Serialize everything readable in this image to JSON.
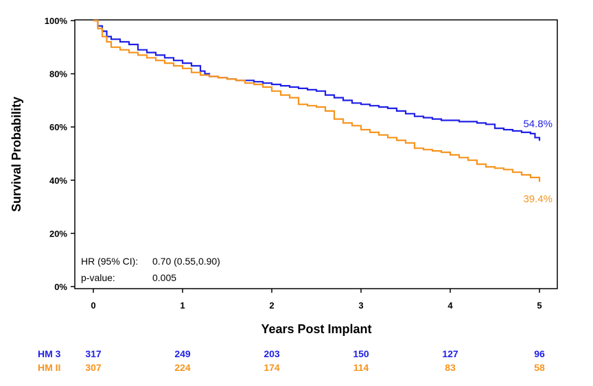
{
  "chart_data": {
    "type": "line",
    "xlabel": "Years Post Implant",
    "ylabel": "Survival Probability",
    "xlim": [
      0,
      5
    ],
    "ylim": [
      0,
      100
    ],
    "x_ticks": [
      "0",
      "1",
      "2",
      "3",
      "4",
      "5"
    ],
    "y_ticks": [
      "0%",
      "20%",
      "40%",
      "60%",
      "80%",
      "100%"
    ],
    "grid": false,
    "series": [
      {
        "name": "HM 3",
        "color": "#1f1fe6",
        "end_label": "54.8%",
        "points": [
          [
            0,
            100
          ],
          [
            0.05,
            98
          ],
          [
            0.1,
            96
          ],
          [
            0.15,
            94
          ],
          [
            0.2,
            93
          ],
          [
            0.3,
            92
          ],
          [
            0.4,
            91
          ],
          [
            0.5,
            89
          ],
          [
            0.6,
            88
          ],
          [
            0.7,
            87
          ],
          [
            0.8,
            86
          ],
          [
            0.9,
            85
          ],
          [
            1.0,
            84
          ],
          [
            1.1,
            83
          ],
          [
            1.2,
            81
          ],
          [
            1.25,
            80
          ],
          [
            1.3,
            79
          ],
          [
            1.4,
            78.5
          ],
          [
            1.5,
            78
          ],
          [
            1.6,
            77.5
          ],
          [
            1.7,
            77.5
          ],
          [
            1.8,
            77
          ],
          [
            1.9,
            76.5
          ],
          [
            2.0,
            76
          ],
          [
            2.1,
            75.5
          ],
          [
            2.2,
            75
          ],
          [
            2.3,
            74.5
          ],
          [
            2.4,
            74
          ],
          [
            2.5,
            73.5
          ],
          [
            2.6,
            72
          ],
          [
            2.7,
            71
          ],
          [
            2.8,
            70
          ],
          [
            2.9,
            69
          ],
          [
            3.0,
            68.5
          ],
          [
            3.1,
            68
          ],
          [
            3.2,
            67.5
          ],
          [
            3.3,
            67
          ],
          [
            3.4,
            66
          ],
          [
            3.5,
            65
          ],
          [
            3.6,
            64
          ],
          [
            3.7,
            63.5
          ],
          [
            3.8,
            63
          ],
          [
            3.9,
            62.5
          ],
          [
            4.0,
            62.5
          ],
          [
            4.1,
            62
          ],
          [
            4.2,
            62
          ],
          [
            4.3,
            61.5
          ],
          [
            4.4,
            61
          ],
          [
            4.5,
            59.5
          ],
          [
            4.6,
            59
          ],
          [
            4.7,
            58.5
          ],
          [
            4.8,
            58
          ],
          [
            4.9,
            57.5
          ],
          [
            4.95,
            56
          ],
          [
            5.0,
            54.8
          ]
        ]
      },
      {
        "name": "HM II",
        "color": "#f7941d",
        "end_label": "39.4%",
        "points": [
          [
            0,
            100
          ],
          [
            0.05,
            97
          ],
          [
            0.1,
            94
          ],
          [
            0.15,
            92
          ],
          [
            0.2,
            90
          ],
          [
            0.3,
            89
          ],
          [
            0.4,
            88
          ],
          [
            0.5,
            87
          ],
          [
            0.6,
            86
          ],
          [
            0.7,
            85
          ],
          [
            0.8,
            84
          ],
          [
            0.9,
            83
          ],
          [
            1.0,
            82
          ],
          [
            1.1,
            80.5
          ],
          [
            1.2,
            79.5
          ],
          [
            1.3,
            79
          ],
          [
            1.4,
            78.5
          ],
          [
            1.5,
            78
          ],
          [
            1.6,
            77.5
          ],
          [
            1.7,
            76.5
          ],
          [
            1.8,
            76
          ],
          [
            1.9,
            75
          ],
          [
            2.0,
            73.5
          ],
          [
            2.1,
            72
          ],
          [
            2.2,
            71
          ],
          [
            2.3,
            68.5
          ],
          [
            2.4,
            68
          ],
          [
            2.5,
            67.5
          ],
          [
            2.6,
            66
          ],
          [
            2.7,
            63
          ],
          [
            2.8,
            61.5
          ],
          [
            2.9,
            60.5
          ],
          [
            3.0,
            59
          ],
          [
            3.1,
            58
          ],
          [
            3.2,
            57
          ],
          [
            3.3,
            56
          ],
          [
            3.4,
            55
          ],
          [
            3.5,
            54
          ],
          [
            3.6,
            52
          ],
          [
            3.7,
            51.5
          ],
          [
            3.8,
            51
          ],
          [
            3.9,
            50.5
          ],
          [
            4.0,
            49.5
          ],
          [
            4.1,
            48.5
          ],
          [
            4.2,
            47.5
          ],
          [
            4.3,
            46
          ],
          [
            4.4,
            45
          ],
          [
            4.5,
            44.5
          ],
          [
            4.6,
            44
          ],
          [
            4.7,
            43
          ],
          [
            4.8,
            42
          ],
          [
            4.9,
            41
          ],
          [
            5.0,
            39.4
          ]
        ]
      }
    ],
    "annotations": {
      "hr_label": "HR (95% CI):",
      "hr_value": "0.70 (0.55,0.90)",
      "p_label": "p-value:",
      "p_value": "0.005"
    },
    "risk_table": [
      {
        "label": "HM 3",
        "color": "#1f1fe6",
        "counts": [
          "317",
          "249",
          "203",
          "150",
          "127",
          "96"
        ]
      },
      {
        "label": "HM II",
        "color": "#f7941d",
        "counts": [
          "307",
          "224",
          "174",
          "114",
          "83",
          "58"
        ]
      }
    ]
  }
}
